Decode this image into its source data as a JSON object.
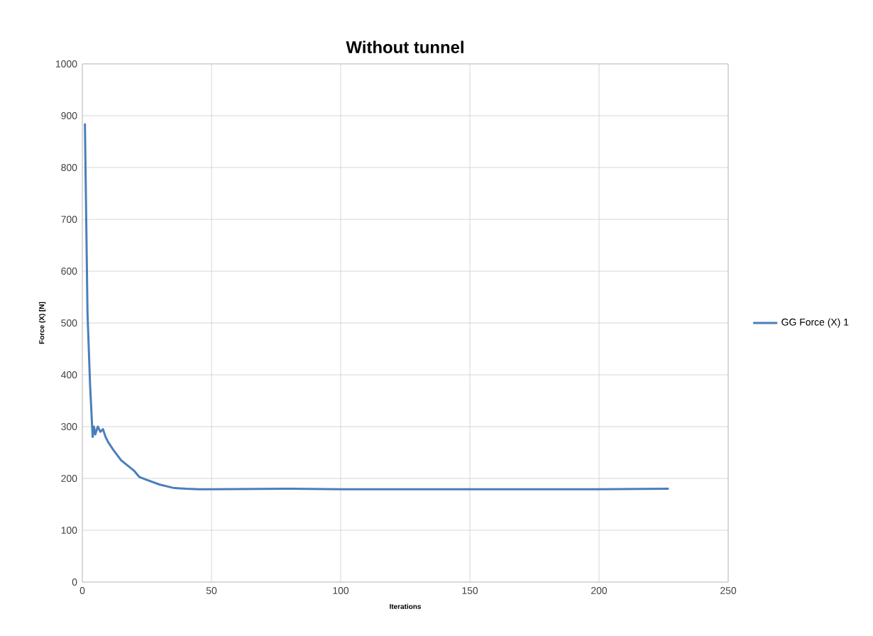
{
  "chart_data": {
    "type": "line",
    "title": "Without tunnel",
    "xlabel": "Iterations",
    "ylabel": "Force (X) [N]",
    "xlim": [
      0,
      250
    ],
    "xticks": [
      0,
      50,
      100,
      150,
      200,
      250
    ],
    "ylim": [
      0,
      1000
    ],
    "yticks": [
      0,
      100,
      200,
      300,
      400,
      500,
      600,
      700,
      800,
      900,
      1000
    ],
    "grid": true,
    "legend": "right",
    "marker": "none",
    "line_style": "solid",
    "series": [
      {
        "name": "GG Force (X) 1",
        "color": "#4a7ebb",
        "x": [
          1,
          2,
          3,
          4,
          4.5,
          5,
          6,
          7,
          8,
          9,
          10,
          12,
          15,
          20,
          22,
          25,
          30,
          35,
          40,
          45,
          50,
          80,
          100,
          150,
          200,
          227
        ],
        "values": [
          885,
          520,
          380,
          280,
          300,
          285,
          300,
          290,
          295,
          280,
          270,
          255,
          235,
          215,
          203,
          197,
          188,
          182,
          180,
          179,
          179,
          180,
          179,
          179,
          179,
          180
        ]
      }
    ]
  }
}
